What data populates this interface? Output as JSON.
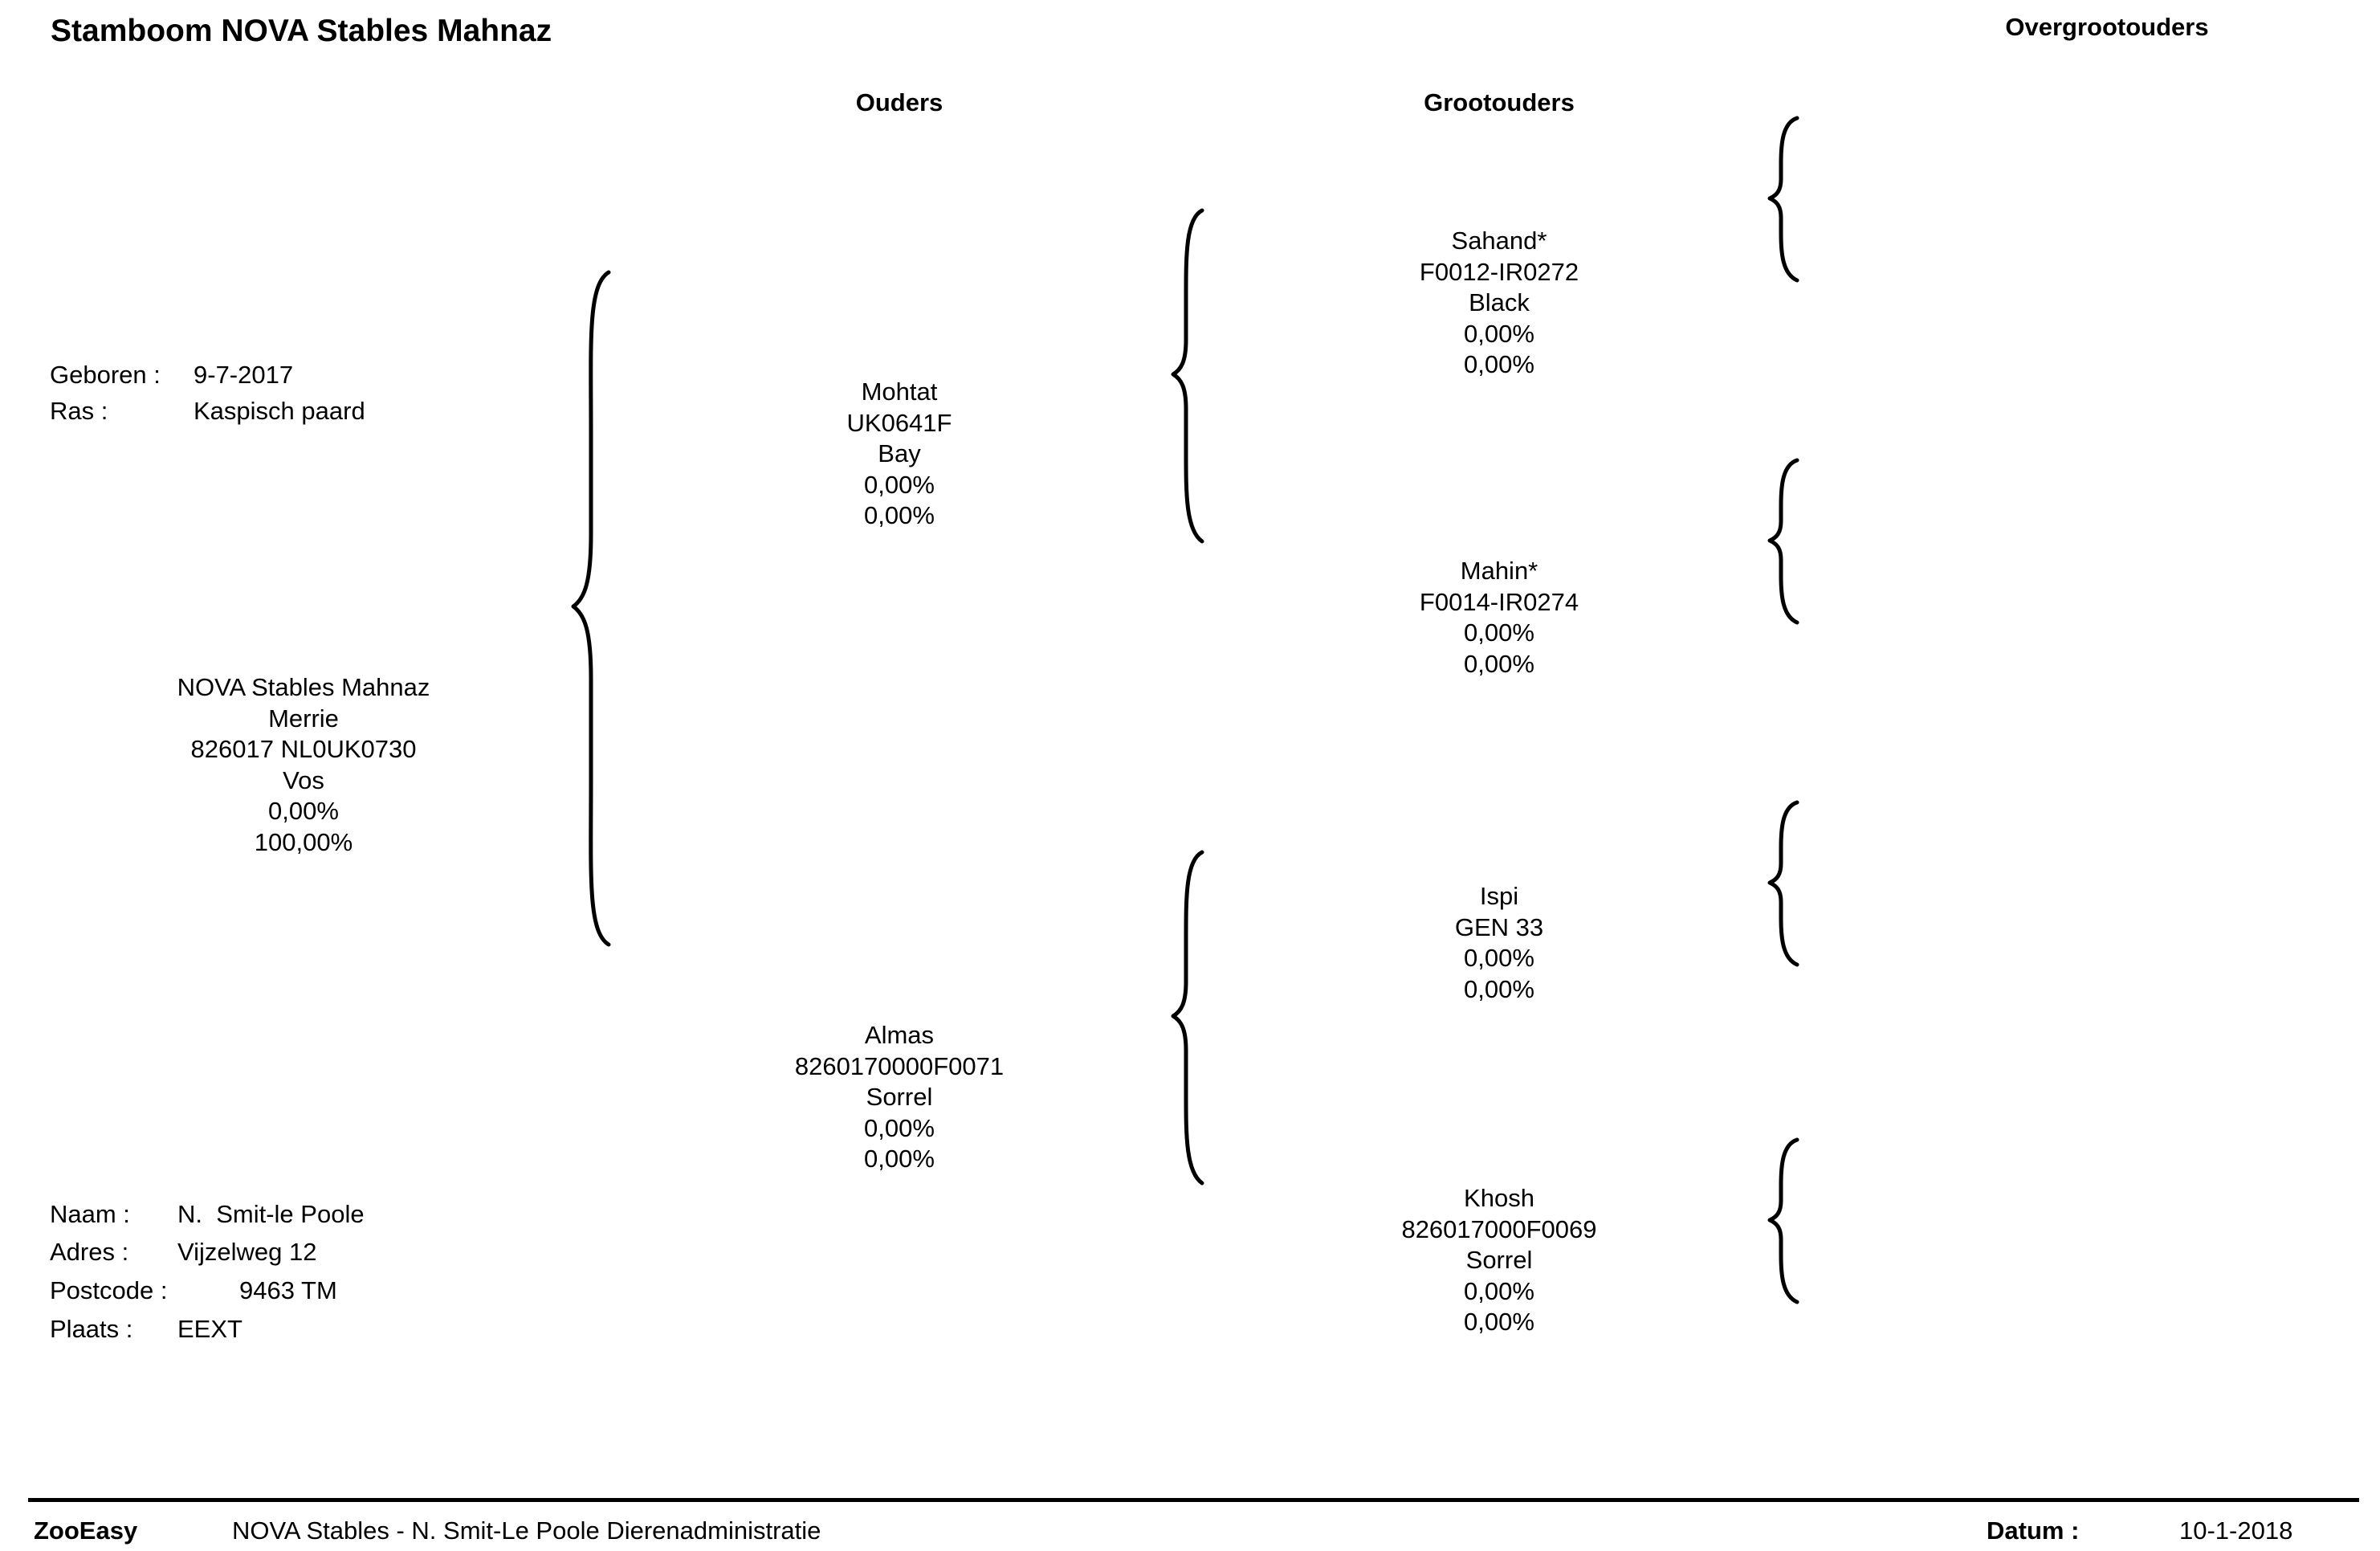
{
  "title": "Stamboom NOVA Stables Mahnaz",
  "columns": {
    "parents": "Ouders",
    "grandparents": "Grootouders",
    "great_grandparents": "Overgrootouders"
  },
  "animal_info": {
    "born_label": "Geboren :",
    "born_value": "9-7-2017",
    "breed_label": "Ras :",
    "breed_value": "Kaspisch paard"
  },
  "subject": {
    "name": "NOVA Stables Mahnaz",
    "sex": "Merrie",
    "id": "826017 NL0UK0730",
    "color": "Vos",
    "pct1": "0,00%",
    "pct2": "100,00%"
  },
  "parents": [
    {
      "name": "Mohtat",
      "id": "UK0641F",
      "color": "Bay",
      "pct1": "0,00%",
      "pct2": "0,00%"
    },
    {
      "name": "Almas",
      "id": "8260170000F0071",
      "color": "Sorrel",
      "pct1": "0,00%",
      "pct2": "0,00%"
    }
  ],
  "grandparents": [
    {
      "name": "Sahand*",
      "id": "F0012-IR0272",
      "color": "Black",
      "pct1": "0,00%",
      "pct2": "0,00%"
    },
    {
      "name": "Mahin*",
      "id": "F0014-IR0274",
      "pct1": "0,00%",
      "pct2": "0,00%"
    },
    {
      "name": "Ispi",
      "id": "GEN 33",
      "pct1": "0,00%",
      "pct2": "0,00%"
    },
    {
      "name": "Khosh",
      "id": "826017000F0069",
      "color": "Sorrel",
      "pct1": "0,00%",
      "pct2": "0,00%"
    }
  ],
  "owner": {
    "name_label": "Naam :",
    "name_value": "N.  Smit-le Poole",
    "address_label": "Adres :",
    "address_value": "Vijzelweg 12",
    "postcode_label": "Postcode :",
    "postcode_value": "9463 TM",
    "city_label": "Plaats :",
    "city_value": "EEXT"
  },
  "footer": {
    "brand": "ZooEasy",
    "org": "NOVA Stables - N. Smit-Le Poole Dierenadministratie",
    "date_label": "Datum :",
    "date_value": "10-1-2018"
  }
}
